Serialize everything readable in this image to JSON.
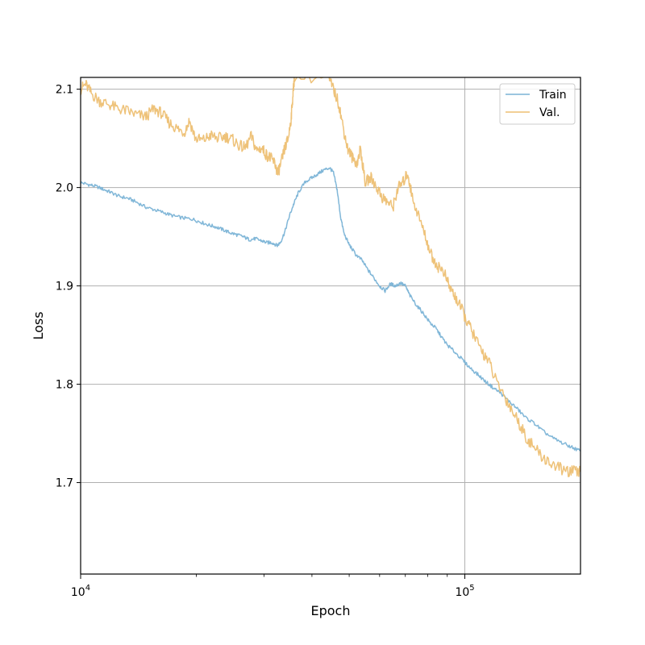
{
  "chart_data": {
    "type": "line",
    "xlabel": "Epoch",
    "ylabel": "Loss",
    "xscale": "log",
    "xlim": [
      10000,
      200000
    ],
    "ylim": [
      1.607,
      2.112
    ],
    "x_major_ticks": [
      {
        "value": 10000,
        "base": "10",
        "exp": "4"
      },
      {
        "value": 100000,
        "base": "10",
        "exp": "5"
      }
    ],
    "y_ticks": [
      1.7,
      1.8,
      1.9,
      2.0,
      2.1
    ],
    "y_tick_labels": [
      "1.7",
      "1.8",
      "1.9",
      "2.0",
      "2.1"
    ],
    "grid": "major",
    "legend_position": "top-right",
    "series": [
      {
        "name": "Train",
        "color": "#7ab3d6",
        "points": [
          [
            10000,
            2.005
          ],
          [
            10500,
            2.003
          ],
          [
            11000,
            2.001
          ],
          [
            11500,
            1.998
          ],
          [
            12000,
            1.995
          ],
          [
            12600,
            1.991
          ],
          [
            13300,
            1.989
          ],
          [
            14000,
            1.985
          ],
          [
            14800,
            1.98
          ],
          [
            15700,
            1.977
          ],
          [
            16600,
            1.974
          ],
          [
            17500,
            1.971
          ],
          [
            18500,
            1.969
          ],
          [
            19500,
            1.968
          ],
          [
            20500,
            1.965
          ],
          [
            21500,
            1.962
          ],
          [
            22500,
            1.96
          ],
          [
            23500,
            1.957
          ],
          [
            24500,
            1.954
          ],
          [
            25500,
            1.952
          ],
          [
            26500,
            1.95
          ],
          [
            27500,
            1.947
          ],
          [
            28500,
            1.948
          ],
          [
            29500,
            1.946
          ],
          [
            30500,
            1.944
          ],
          [
            31500,
            1.944
          ],
          [
            32500,
            1.941
          ],
          [
            33200,
            1.945
          ],
          [
            34000,
            1.955
          ],
          [
            35000,
            1.972
          ],
          [
            36000,
            1.985
          ],
          [
            37000,
            1.996
          ],
          [
            38500,
            2.006
          ],
          [
            40000,
            2.01
          ],
          [
            41500,
            2.014
          ],
          [
            43000,
            2.018
          ],
          [
            44500,
            2.02
          ],
          [
            45500,
            2.015
          ],
          [
            46500,
            1.998
          ],
          [
            47500,
            1.97
          ],
          [
            48500,
            1.953
          ],
          [
            50000,
            1.942
          ],
          [
            52000,
            1.932
          ],
          [
            54000,
            1.926
          ],
          [
            56000,
            1.916
          ],
          [
            58000,
            1.908
          ],
          [
            60000,
            1.9
          ],
          [
            62000,
            1.895
          ],
          [
            64000,
            1.902
          ],
          [
            66000,
            1.9
          ],
          [
            68000,
            1.903
          ],
          [
            70000,
            1.9
          ],
          [
            72000,
            1.89
          ],
          [
            75000,
            1.88
          ],
          [
            78000,
            1.872
          ],
          [
            81000,
            1.863
          ],
          [
            84000,
            1.857
          ],
          [
            87000,
            1.848
          ],
          [
            90000,
            1.84
          ],
          [
            94000,
            1.833
          ],
          [
            98000,
            1.826
          ],
          [
            103000,
            1.817
          ],
          [
            108000,
            1.81
          ],
          [
            113000,
            1.803
          ],
          [
            118000,
            1.797
          ],
          [
            124000,
            1.791
          ],
          [
            130000,
            1.783
          ],
          [
            137000,
            1.775
          ],
          [
            144000,
            1.766
          ],
          [
            152000,
            1.76
          ],
          [
            160000,
            1.752
          ],
          [
            170000,
            1.745
          ],
          [
            180000,
            1.74
          ],
          [
            190000,
            1.736
          ],
          [
            200000,
            1.732
          ]
        ]
      },
      {
        "name": "Val.",
        "color": "#edbf72",
        "points": [
          [
            10000,
            2.1
          ],
          [
            10300,
            2.105
          ],
          [
            10700,
            2.095
          ],
          [
            11200,
            2.088
          ],
          [
            11800,
            2.085
          ],
          [
            12500,
            2.08
          ],
          [
            13200,
            2.078
          ],
          [
            14000,
            2.074
          ],
          [
            14800,
            2.072
          ],
          [
            15500,
            2.08
          ],
          [
            16200,
            2.076
          ],
          [
            17000,
            2.066
          ],
          [
            17800,
            2.06
          ],
          [
            18600,
            2.056
          ],
          [
            19200,
            2.068
          ],
          [
            19900,
            2.05
          ],
          [
            20800,
            2.048
          ],
          [
            21800,
            2.053
          ],
          [
            22800,
            2.05
          ],
          [
            23800,
            2.052
          ],
          [
            24800,
            2.049
          ],
          [
            25800,
            2.043
          ],
          [
            26800,
            2.04
          ],
          [
            27800,
            2.052
          ],
          [
            28700,
            2.038
          ],
          [
            29600,
            2.04
          ],
          [
            30500,
            2.033
          ],
          [
            31200,
            2.03
          ],
          [
            32000,
            2.025
          ],
          [
            32600,
            2.014
          ],
          [
            33300,
            2.026
          ],
          [
            34000,
            2.04
          ],
          [
            34700,
            2.05
          ],
          [
            35300,
            2.07
          ],
          [
            35700,
            2.095
          ],
          [
            36000,
            2.112
          ],
          [
            44000,
            2.112
          ],
          [
            45500,
            2.1
          ],
          [
            47000,
            2.085
          ],
          [
            48300,
            2.06
          ],
          [
            49500,
            2.04
          ],
          [
            51000,
            2.03
          ],
          [
            52500,
            2.025
          ],
          [
            53500,
            2.04
          ],
          [
            55000,
            2.005
          ],
          [
            57000,
            2.01
          ],
          [
            59000,
            2.0
          ],
          [
            61000,
            1.99
          ],
          [
            63000,
            1.985
          ],
          [
            65000,
            1.98
          ],
          [
            67000,
            2.0
          ],
          [
            69000,
            2.005
          ],
          [
            71000,
            2.015
          ],
          [
            73000,
            1.99
          ],
          [
            76000,
            1.97
          ],
          [
            79000,
            1.95
          ],
          [
            82000,
            1.93
          ],
          [
            85000,
            1.92
          ],
          [
            88000,
            1.915
          ],
          [
            91000,
            1.9
          ],
          [
            94000,
            1.89
          ],
          [
            97000,
            1.88
          ],
          [
            101000,
            1.865
          ],
          [
            105000,
            1.852
          ],
          [
            110000,
            1.835
          ],
          [
            115000,
            1.825
          ],
          [
            120000,
            1.805
          ],
          [
            126000,
            1.79
          ],
          [
            132000,
            1.775
          ],
          [
            138000,
            1.762
          ],
          [
            145000,
            1.745
          ],
          [
            152000,
            1.735
          ],
          [
            160000,
            1.725
          ],
          [
            170000,
            1.718
          ],
          [
            180000,
            1.713
          ],
          [
            190000,
            1.711
          ],
          [
            200000,
            1.711
          ]
        ]
      }
    ]
  }
}
